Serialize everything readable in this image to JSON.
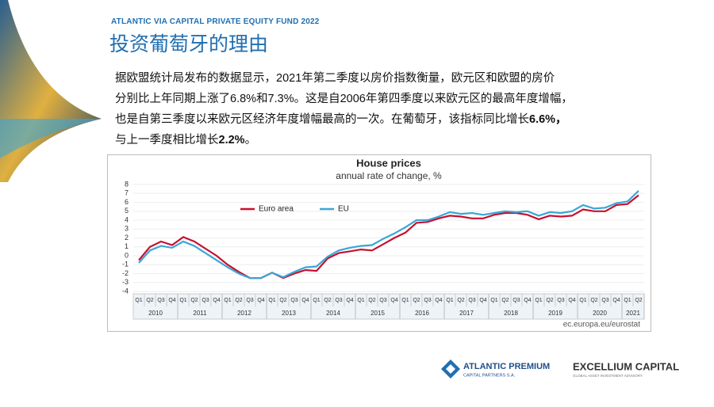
{
  "header": {
    "kicker": "ATLANTIC VIA CAPITAL PRIVATE EQUITY FUND 2022",
    "title": "投资葡萄牙的理由"
  },
  "paragraph": {
    "lines": [
      [
        "据欧盟统计局发布的数据显示，2021年第二季度以房价指数衡量，欧元区和欧盟的房价"
      ],
      [
        "分别比上年同期上涨了6.8%和7.3%。这是自2006年第四季度以来欧元区的最高年度增幅，"
      ],
      [
        "也是自第三季度以来欧元区经济年度增幅最高的一次。在葡萄牙，该指标同比增长",
        "6.6%，"
      ],
      [
        "与上一季度相比增长",
        "2.2%",
        "。"
      ]
    ]
  },
  "chart_data": {
    "type": "line",
    "title": "House prices",
    "subtitle": "annual rate of change, %",
    "categories": [
      "Q1",
      "Q2",
      "Q3",
      "Q4",
      "Q1",
      "Q2",
      "Q3",
      "Q4",
      "Q1",
      "Q2",
      "Q3",
      "Q4",
      "Q1",
      "Q2",
      "Q3",
      "Q4",
      "Q1",
      "Q2",
      "Q3",
      "Q4",
      "Q1",
      "Q2",
      "Q3",
      "Q4",
      "Q1",
      "Q2",
      "Q3",
      "Q4",
      "Q1",
      "Q2",
      "Q3",
      "Q4",
      "Q1",
      "Q2",
      "Q3",
      "Q4",
      "Q1",
      "Q2",
      "Q3",
      "Q4",
      "Q1",
      "Q2",
      "Q3",
      "Q4",
      "Q1",
      "Q2"
    ],
    "years": [
      "2010",
      "2011",
      "2012",
      "2013",
      "2014",
      "2015",
      "2016",
      "2017",
      "2018",
      "2019",
      "2020",
      "2021"
    ],
    "series": [
      {
        "name": "Euro area",
        "color": "#c8102e",
        "values": [
          -0.5,
          1.0,
          1.6,
          1.2,
          2.1,
          1.6,
          0.8,
          0,
          -1.0,
          -1.8,
          -2.5,
          -2.5,
          -1.9,
          -2.5,
          -2.0,
          -1.6,
          -1.7,
          -0.3,
          0.3,
          0.5,
          0.7,
          0.6,
          1.3,
          2.0,
          2.6,
          3.7,
          3.8,
          4.2,
          4.5,
          4.4,
          4.2,
          4.2,
          4.6,
          4.8,
          4.8,
          4.6,
          4.1,
          4.5,
          4.4,
          4.5,
          5.2,
          5.0,
          5.0,
          5.7,
          5.8,
          6.8
        ]
      },
      {
        "name": "EU",
        "color": "#3aa6d8",
        "values": [
          -0.8,
          0.6,
          1.1,
          0.9,
          1.6,
          1.1,
          0.3,
          -0.5,
          -1.3,
          -2.0,
          -2.5,
          -2.5,
          -1.9,
          -2.4,
          -1.8,
          -1.3,
          -1.2,
          -0.1,
          0.6,
          0.9,
          1.1,
          1.2,
          1.9,
          2.5,
          3.2,
          4.0,
          4.0,
          4.4,
          4.9,
          4.7,
          4.8,
          4.6,
          4.8,
          5.0,
          4.9,
          5.0,
          4.5,
          4.9,
          4.8,
          5.0,
          5.7,
          5.3,
          5.4,
          5.9,
          6.1,
          7.3
        ]
      }
    ],
    "ylim": [
      -4,
      8
    ],
    "yticks": [
      -4,
      -3,
      -2,
      -1,
      0,
      1,
      2,
      3,
      4,
      5,
      6,
      7,
      8
    ],
    "grid": true,
    "source": "ec.europa.eu/eurostat"
  },
  "logos": {
    "left": {
      "name": "ATLANTIC PREMIUM",
      "sub": "CAPITAL PARTNERS S.A."
    },
    "right": {
      "name": "EXCELLIUM CAPITAL",
      "sub": "GLOBAL ASSET INVESTMENT ADVISORY"
    }
  }
}
